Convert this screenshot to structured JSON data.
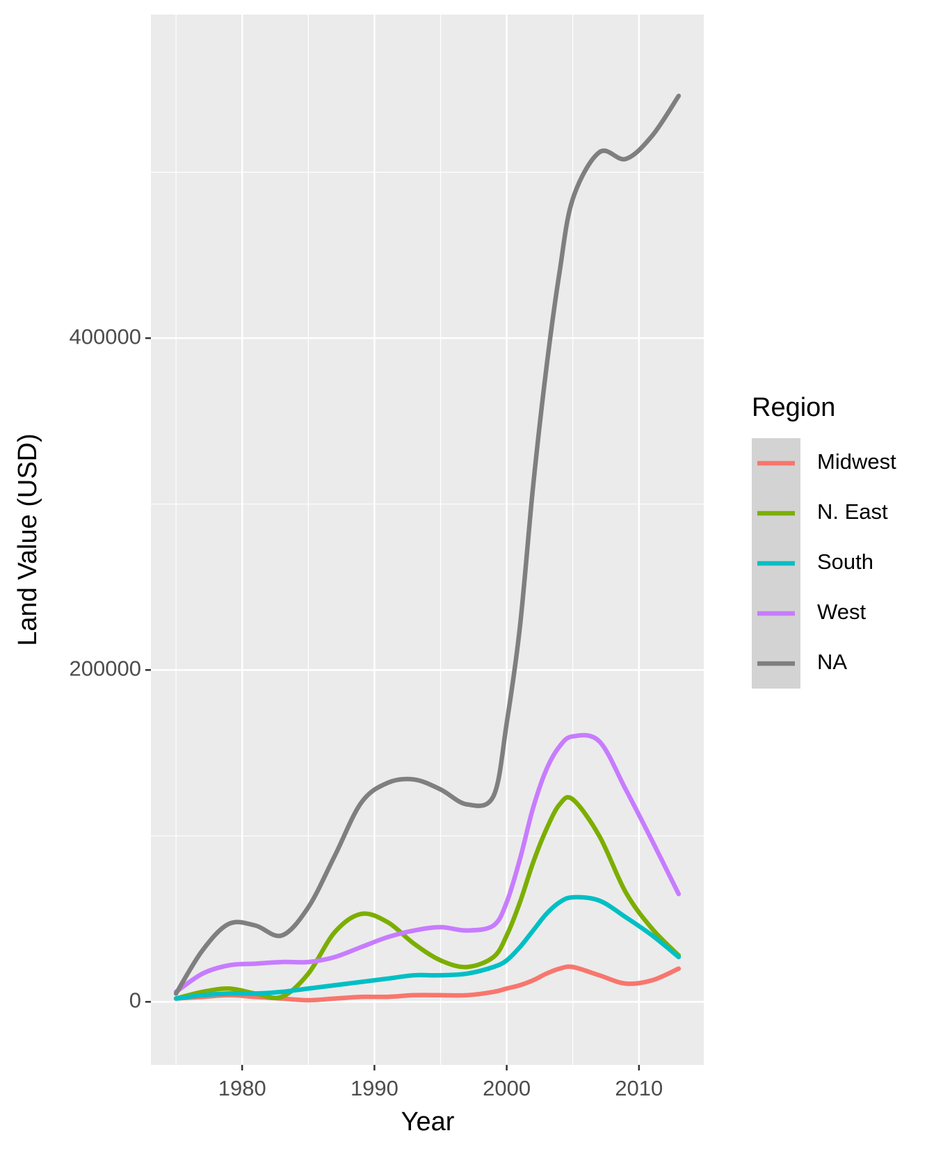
{
  "chart_data": {
    "type": "line",
    "x_label": "Year",
    "y_label": "Land Value (USD)",
    "legend_title": "Region",
    "x": [
      1975,
      1977,
      1979,
      1981,
      1983,
      1985,
      1987,
      1989,
      1991,
      1993,
      1995,
      1997,
      1999,
      2000,
      2001,
      2002,
      2003,
      2004,
      2005,
      2007,
      2009,
      2011,
      2013
    ],
    "series": [
      {
        "name": "Midwest",
        "color": "#f8766d",
        "values": [
          2000,
          3000,
          4000,
          3000,
          2000,
          1000,
          2000,
          3000,
          3000,
          4000,
          4000,
          4000,
          6000,
          8000,
          10000,
          13000,
          17000,
          20000,
          21000,
          16000,
          11000,
          13000,
          20000
        ]
      },
      {
        "name": "N. East",
        "color": "#7cae00",
        "values": [
          2000,
          6000,
          8000,
          5000,
          3000,
          17000,
          42000,
          53000,
          48000,
          35000,
          25000,
          21000,
          27000,
          40000,
          60000,
          84000,
          104000,
          119000,
          122000,
          100000,
          66000,
          44000,
          28000
        ]
      },
      {
        "name": "South",
        "color": "#00bfc4",
        "values": [
          2000,
          4000,
          5000,
          5000,
          6000,
          8000,
          10000,
          12000,
          14000,
          16000,
          16000,
          17000,
          21000,
          25000,
          33000,
          43000,
          53000,
          60000,
          63000,
          61000,
          51000,
          40000,
          27000
        ]
      },
      {
        "name": "West",
        "color": "#c77cff",
        "values": [
          6000,
          17000,
          22000,
          23000,
          24000,
          24000,
          27000,
          33000,
          39000,
          43000,
          45000,
          43000,
          46000,
          60000,
          86000,
          117000,
          140000,
          154000,
          160000,
          157000,
          128000,
          97000,
          65000
        ]
      },
      {
        "name": "NA",
        "color": "#7f7f7f",
        "values": [
          5000,
          31000,
          47000,
          46000,
          40000,
          57000,
          88000,
          120000,
          132000,
          134000,
          128000,
          119000,
          124000,
          168000,
          226000,
          311000,
          382000,
          440000,
          484000,
          512000,
          508000,
          522000,
          546000
        ]
      }
    ],
    "xlim": [
      1973.1,
      2014.9
    ],
    "xticks": [
      1980,
      1990,
      2000,
      2010
    ],
    "ylim": [
      -38000,
      595000
    ],
    "yticks": [
      0,
      200000,
      400000
    ],
    "grid": true,
    "legend": "right"
  }
}
